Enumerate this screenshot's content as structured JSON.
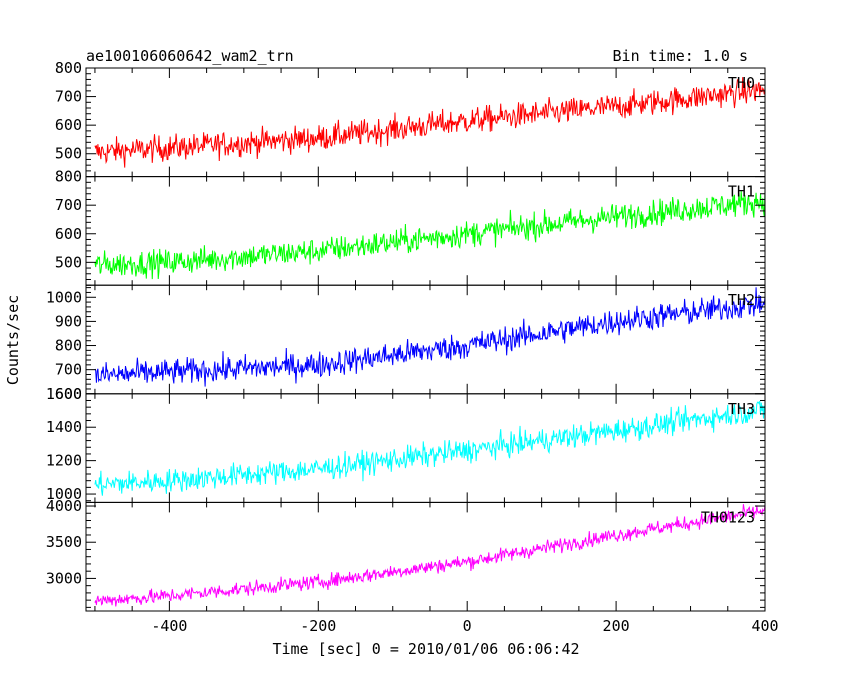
{
  "header": {
    "left_title": "ae100106060642_wam2_trn",
    "right_title": "Bin time: 1.0 s"
  },
  "chart_data": {
    "type": "line",
    "xlabel": "Time [sec] 0 = 2010/01/06 06:06:42",
    "ylabel": "Counts/sec",
    "xlim": [
      -512,
      400
    ],
    "x_ticks": [
      -400,
      -200,
      0,
      200,
      400
    ],
    "bin_time_s": 1.0,
    "panels": [
      {
        "name": "TH0",
        "color": "#ff0000",
        "ylim": [
          420,
          800
        ],
        "y_ticks": [
          500,
          600,
          700,
          800
        ],
        "trend": {
          "x": [
            -500,
            -400,
            -200,
            0,
            200,
            400
          ],
          "y": [
            505,
            520,
            555,
            615,
            665,
            725
          ]
        },
        "noise_amplitude": 32
      },
      {
        "name": "TH1",
        "color": "#00ff00",
        "ylim": [
          420,
          800
        ],
        "y_ticks": [
          500,
          600,
          700,
          800
        ],
        "trend": {
          "x": [
            -500,
            -400,
            -200,
            0,
            200,
            400
          ],
          "y": [
            490,
            500,
            540,
            600,
            660,
            715
          ]
        },
        "noise_amplitude": 32
      },
      {
        "name": "TH2",
        "color": "#0000ff",
        "ylim": [
          600,
          1050
        ],
        "y_ticks": [
          600,
          700,
          800,
          900,
          1000
        ],
        "trend": {
          "x": [
            -500,
            -400,
            -200,
            0,
            200,
            400
          ],
          "y": [
            675,
            690,
            720,
            800,
            900,
            975
          ]
        },
        "noise_amplitude": 38
      },
      {
        "name": "TH3",
        "color": "#00ffff",
        "ylim": [
          950,
          1600
        ],
        "y_ticks": [
          1000,
          1200,
          1400,
          1600
        ],
        "trend": {
          "x": [
            -500,
            -400,
            -200,
            0,
            200,
            400
          ],
          "y": [
            1055,
            1080,
            1150,
            1260,
            1380,
            1505
          ]
        },
        "noise_amplitude": 50
      },
      {
        "name": "TH0123",
        "color": "#ff00ff",
        "ylim": [
          2550,
          4050
        ],
        "y_ticks": [
          3000,
          3500,
          4000
        ],
        "trend": {
          "x": [
            -500,
            -400,
            -200,
            0,
            200,
            400
          ],
          "y": [
            2690,
            2760,
            2950,
            3230,
            3600,
            3940
          ]
        },
        "noise_amplitude": 70
      }
    ]
  }
}
